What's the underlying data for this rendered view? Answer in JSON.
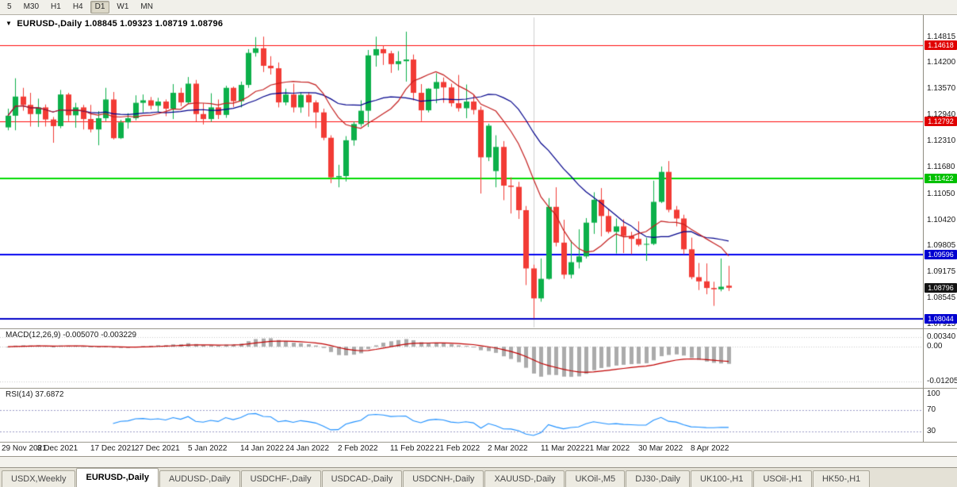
{
  "toolbar": {
    "periods": [
      "5",
      "M30",
      "H1",
      "H4",
      "D1",
      "W1",
      "MN"
    ],
    "active_period": "D1"
  },
  "chart_title": {
    "collapse_icon": "▼",
    "symbol": "EURUSD-,Daily",
    "ohlc": "1.08845 1.09323 1.08719 1.08796"
  },
  "colors": {
    "up": "#0CB04A",
    "down": "#F23B35",
    "background": "#FFFFFF"
  },
  "chart_data": {
    "type": "candlestick",
    "symbol": "EURUSD-,Daily",
    "x_labels": [
      "29 Nov 2021",
      "8 Dec 2021",
      "17 Dec 2021",
      "27 Dec 2021",
      "5 Jan 2022",
      "14 Jan 2022",
      "24 Jan 2022",
      "2 Feb 2022",
      "11 Feb 2022",
      "21 Feb 2022",
      "2 Mar 2022",
      "11 Mar 2022",
      "21 Mar 2022",
      "30 Mar 2022",
      "8 Apr 2022"
    ],
    "x_label_indices": [
      0,
      7,
      14,
      20,
      27,
      34,
      40,
      47,
      54,
      60,
      67,
      74,
      80,
      87,
      94
    ],
    "price_axis_ticks": [
      "1.14815",
      "1.14200",
      "1.13570",
      "1.12940",
      "1.12310",
      "1.11680",
      "1.11050",
      "1.10420",
      "1.09805",
      "1.09175",
      "1.08545",
      "1.07915"
    ],
    "ylim": [
      1.0784,
      1.1529
    ],
    "candles": [
      [
        1.1265,
        1.131,
        1.1258,
        1.1293
      ],
      [
        1.1293,
        1.1383,
        1.1258,
        1.1339
      ],
      [
        1.1339,
        1.136,
        1.1305,
        1.1319
      ],
      [
        1.1319,
        1.1348,
        1.1267,
        1.1297
      ],
      [
        1.1297,
        1.1334,
        1.1266,
        1.1313
      ],
      [
        1.1313,
        1.132,
        1.1267,
        1.1284
      ],
      [
        1.1284,
        1.129,
        1.1228,
        1.1268
      ],
      [
        1.1268,
        1.1355,
        1.1263,
        1.1344
      ],
      [
        1.1344,
        1.1348,
        1.128,
        1.1294
      ],
      [
        1.1294,
        1.1324,
        1.1264,
        1.1313
      ],
      [
        1.1313,
        1.1319,
        1.126,
        1.1285
      ],
      [
        1.1285,
        1.1319,
        1.1253,
        1.126
      ],
      [
        1.126,
        1.1304,
        1.1222,
        1.1287
      ],
      [
        1.1287,
        1.136,
        1.128,
        1.1332
      ],
      [
        1.1332,
        1.135,
        1.1236,
        1.1239
      ],
      [
        1.1239,
        1.1283,
        1.1237,
        1.1277
      ],
      [
        1.1277,
        1.1299,
        1.1262,
        1.1287
      ],
      [
        1.1287,
        1.1342,
        1.1282,
        1.1324
      ],
      [
        1.1324,
        1.1344,
        1.1301,
        1.133
      ],
      [
        1.133,
        1.1338,
        1.1308,
        1.1317
      ],
      [
        1.1317,
        1.1336,
        1.1302,
        1.1327
      ],
      [
        1.1327,
        1.1332,
        1.1292,
        1.131
      ],
      [
        1.131,
        1.1369,
        1.1285,
        1.1348
      ],
      [
        1.1348,
        1.136,
        1.1316,
        1.1325
      ],
      [
        1.1325,
        1.1386,
        1.1321,
        1.137
      ],
      [
        1.137,
        1.1379,
        1.1279,
        1.1297
      ],
      [
        1.1297,
        1.1323,
        1.1272,
        1.1285
      ],
      [
        1.1285,
        1.1347,
        1.1278,
        1.1313
      ],
      [
        1.1313,
        1.1332,
        1.1285,
        1.1295
      ],
      [
        1.1295,
        1.1365,
        1.1288,
        1.136
      ],
      [
        1.136,
        1.1363,
        1.1314,
        1.1328
      ],
      [
        1.1328,
        1.1375,
        1.1313,
        1.1367
      ],
      [
        1.1367,
        1.1453,
        1.136,
        1.1444
      ],
      [
        1.1444,
        1.1482,
        1.1435,
        1.1455
      ],
      [
        1.1455,
        1.1483,
        1.1398,
        1.1413
      ],
      [
        1.1413,
        1.1436,
        1.1392,
        1.1407
      ],
      [
        1.1407,
        1.1421,
        1.1313,
        1.1325
      ],
      [
        1.1325,
        1.1358,
        1.1318,
        1.1344
      ],
      [
        1.1344,
        1.137,
        1.1301,
        1.1313
      ],
      [
        1.1313,
        1.1349,
        1.13,
        1.1343
      ],
      [
        1.1343,
        1.1349,
        1.1291,
        1.1325
      ],
      [
        1.1325,
        1.133,
        1.1263,
        1.1301
      ],
      [
        1.1301,
        1.131,
        1.1234,
        1.124
      ],
      [
        1.124,
        1.1246,
        1.1131,
        1.1145
      ],
      [
        1.1145,
        1.1175,
        1.1121,
        1.1148
      ],
      [
        1.1148,
        1.1244,
        1.1135,
        1.1234
      ],
      [
        1.1234,
        1.1279,
        1.1221,
        1.1273
      ],
      [
        1.1273,
        1.133,
        1.1267,
        1.1305
      ],
      [
        1.1305,
        1.1451,
        1.1266,
        1.1438
      ],
      [
        1.1438,
        1.1483,
        1.1411,
        1.1453
      ],
      [
        1.1453,
        1.1462,
        1.1415,
        1.1443
      ],
      [
        1.1443,
        1.1449,
        1.1396,
        1.1417
      ],
      [
        1.1417,
        1.1448,
        1.1402,
        1.1424
      ],
      [
        1.1424,
        1.1495,
        1.1375,
        1.1428
      ],
      [
        1.1428,
        1.144,
        1.133,
        1.1348
      ],
      [
        1.1348,
        1.1369,
        1.128,
        1.1306
      ],
      [
        1.1306,
        1.1359,
        1.1301,
        1.1358
      ],
      [
        1.1358,
        1.1395,
        1.1323,
        1.1374
      ],
      [
        1.1374,
        1.1385,
        1.1324,
        1.1361
      ],
      [
        1.1361,
        1.137,
        1.1315,
        1.1323
      ],
      [
        1.1323,
        1.1391,
        1.1303,
        1.1311
      ],
      [
        1.1311,
        1.1368,
        1.1287,
        1.1327
      ],
      [
        1.1327,
        1.1343,
        1.1296,
        1.1307
      ],
      [
        1.1307,
        1.1315,
        1.1106,
        1.1193
      ],
      [
        1.1193,
        1.1274,
        1.1184,
        1.1269
      ],
      [
        1.116,
        1.1246,
        1.1121,
        1.1218
      ],
      [
        1.1218,
        1.1232,
        1.109,
        1.1125
      ],
      [
        1.1125,
        1.1145,
        1.1058,
        1.1122
      ],
      [
        1.1122,
        1.1134,
        1.1045,
        1.1066
      ],
      [
        1.1066,
        1.1076,
        1.0886,
        1.0926
      ],
      [
        1.0926,
        1.0935,
        1.0806,
        1.0854
      ],
      [
        1.0854,
        1.095,
        1.0846,
        1.0901
      ],
      [
        1.0901,
        1.1095,
        1.0899,
        1.1074
      ],
      [
        1.1074,
        1.1121,
        1.0979,
        1.0988
      ],
      [
        1.0988,
        1.1043,
        1.0901,
        1.0911
      ],
      [
        1.0911,
        1.0993,
        1.0902,
        1.0941
      ],
      [
        1.0941,
        1.102,
        1.0926,
        1.0955
      ],
      [
        1.0955,
        1.1047,
        1.095,
        1.1036
      ],
      [
        1.1036,
        1.1109,
        1.1009,
        1.1091
      ],
      [
        1.1091,
        1.1119,
        1.1003,
        1.1052
      ],
      [
        1.1052,
        1.1069,
        1.101,
        1.1014
      ],
      [
        1.1014,
        1.1046,
        1.0962,
        1.1027
      ],
      [
        1.1027,
        1.1044,
        1.0963,
        1.1004
      ],
      [
        1.1004,
        1.1014,
        1.096,
        1.0997
      ],
      [
        1.0997,
        1.1039,
        1.0979,
        1.0983
      ],
      [
        1.0983,
        1.1,
        1.0944,
        1.0985
      ],
      [
        1.0985,
        1.1137,
        1.0982,
        1.1086
      ],
      [
        1.1086,
        1.1171,
        1.1083,
        1.1158
      ],
      [
        1.1158,
        1.1184,
        1.1061,
        1.1067
      ],
      [
        1.1067,
        1.1076,
        1.1027,
        1.1046
      ],
      [
        1.1046,
        1.1055,
        1.096,
        1.0972
      ],
      [
        1.0972,
        1.1,
        1.09,
        1.0905
      ],
      [
        1.0905,
        1.0939,
        1.0874,
        1.0895
      ],
      [
        1.0895,
        1.0938,
        1.0864,
        1.0879
      ],
      [
        1.0879,
        1.0894,
        1.0836,
        1.0876
      ],
      [
        1.0876,
        1.095,
        1.0871,
        1.0882
      ],
      [
        1.08845,
        1.09323,
        1.08719,
        1.08796
      ]
    ],
    "moving_averages": [
      {
        "name": "ma-fast",
        "period": 10,
        "color": "#C41E1E"
      },
      {
        "name": "ma-slow",
        "period": 20,
        "color": "#00008B"
      }
    ],
    "horizontal_lines": [
      {
        "price": 1.14618,
        "text": "1.14618",
        "color": "#FF0A0A",
        "width": 1,
        "badge_color": "#E00000"
      },
      {
        "price": 1.12792,
        "text": "1.12792",
        "color": "#FF0A0A",
        "width": 1,
        "badge_color": "#E00000"
      },
      {
        "price": 1.11422,
        "text": "1.11422",
        "color": "#00DC00",
        "width": 2,
        "badge_color": "#00C000"
      },
      {
        "price": 1.09596,
        "text": "1.09596",
        "color": "#0000F0",
        "width": 2,
        "badge_color": "#0000D0"
      },
      {
        "price": 1.08044,
        "text": "1.08044",
        "color": "#0000C8",
        "width": 2,
        "badge_color": "#0000D0"
      }
    ],
    "current_price": {
      "value": 1.08796,
      "text": "1.08796",
      "badge_color": "#141414"
    },
    "vline_index": 70,
    "macd": {
      "label": "MACD(12,26,9) -0.005070 -0.003229",
      "fast": 12,
      "slow": 26,
      "signal": 9,
      "scale_labels": [
        "0.00340",
        "0.00",
        "-0.01205"
      ],
      "histogram_color": "#ABABAB",
      "signal_color": "#C00000",
      "grid_color": "#C8C8C8"
    },
    "rsi": {
      "label": "RSI(14) 37.6872",
      "period": 14,
      "scale_labels": [
        "100",
        "70",
        "30"
      ],
      "levels": [
        70,
        30
      ],
      "line_color": "#1E90FF",
      "level_color": "#9A9AC8"
    }
  },
  "tabs": {
    "items": [
      "USDX,Weekly",
      "EURUSD-,Daily",
      "AUDUSD-,Daily",
      "USDCHF-,Daily",
      "USDCAD-,Daily",
      "USDCNH-,Daily",
      "XAUUSD-,Daily",
      "UKOil-,M5",
      "DJ30-,Daily",
      "UK100-,H1",
      "USOil-,H1",
      "HK50-,H1"
    ],
    "active_index": 1
  }
}
